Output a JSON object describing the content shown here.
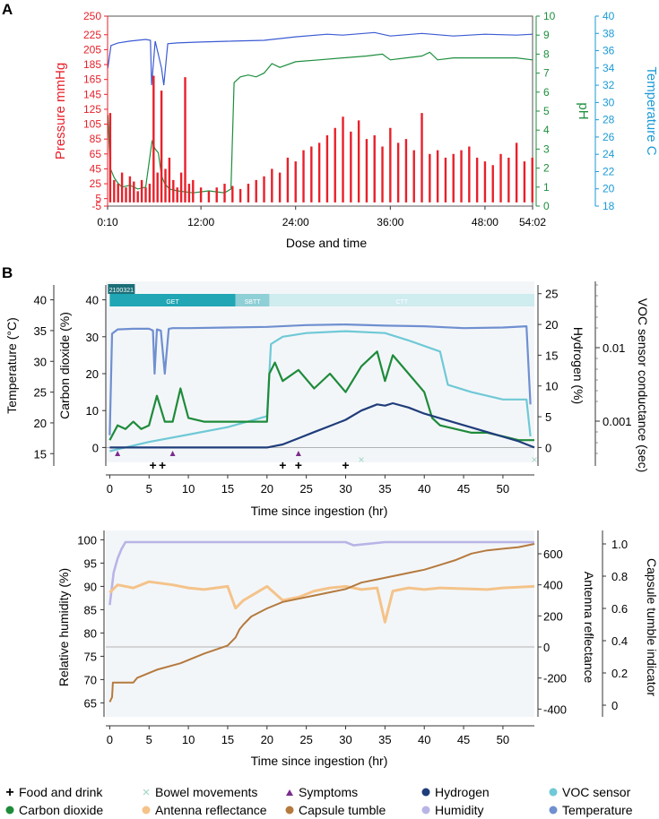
{
  "panel_labels": {
    "a": "A",
    "b": "B"
  },
  "colors": {
    "pressure": "#e8202a",
    "ph": "#1e8e3e",
    "temperature_a": "#3b5bd3",
    "temperature_axis": "#1a9ad6",
    "co2": "#1e8b3a",
    "hydrogen": "#1f3d7a",
    "voc": "#6fc9d6",
    "temperature_b": "#6f8fd0",
    "humidity": "#b9b4e6",
    "antenna": "#f4c38a",
    "tumble": "#b57a3e",
    "symptom": "#7b2c8c",
    "bowel": "#9fd4c4",
    "food": "#000000",
    "seg_get": "#20a6b4",
    "seg_sbtt": "#8fcfd6",
    "seg_ct": "#cfecef"
  },
  "chart_data": [
    {
      "id": "A",
      "type": "line",
      "xlabel": "Dose and time",
      "xticks": [
        "0:10",
        "12:00",
        "24:00",
        "36:00",
        "48:00",
        "54:02"
      ],
      "xtick_hours": [
        0.17,
        12,
        24,
        36,
        48,
        54.03
      ],
      "xlim": [
        0.17,
        54.03
      ],
      "axes": {
        "pressure": {
          "label": "Pressure mmHg",
          "range": [
            -5,
            250
          ],
          "ticks": [
            -5,
            5,
            25,
            45,
            65,
            85,
            105,
            125,
            145,
            165,
            185,
            205,
            225,
            250
          ]
        },
        "ph": {
          "label": "pH",
          "range": [
            0,
            10
          ],
          "ticks": [
            0,
            1,
            2,
            3,
            4,
            5,
            6,
            7,
            8,
            9,
            10
          ]
        },
        "temperature": {
          "label": "Temperature C",
          "range": [
            18,
            40
          ],
          "ticks": [
            18,
            20,
            22,
            24,
            26,
            28,
            30,
            32,
            34,
            36,
            38,
            40
          ]
        }
      },
      "series": [
        {
          "name": "Temperature",
          "axis": "temperature",
          "hours": [
            0.2,
            0.6,
            1.5,
            3,
            5,
            5.6,
            5.75,
            6.2,
            7,
            7.3,
            7.8,
            9,
            12,
            16,
            20,
            24,
            28,
            30,
            34,
            36,
            40,
            44,
            48,
            52,
            54
          ],
          "values": [
            34,
            36.6,
            36.9,
            37.1,
            37.3,
            37.2,
            32,
            37.1,
            34,
            32,
            36.8,
            36.9,
            37.0,
            37.1,
            37.2,
            37.6,
            37.9,
            37.8,
            38.1,
            37.7,
            38.0,
            37.7,
            37.9,
            37.8,
            37.9
          ]
        },
        {
          "name": "pH",
          "axis": "ph",
          "hours": [
            0.2,
            0.5,
            1,
            1.5,
            2,
            3,
            4,
            5,
            5.8,
            6.2,
            6.6,
            7,
            7.4,
            8,
            9,
            11,
            13,
            15,
            15.8,
            16.2,
            17,
            18,
            19,
            20,
            21,
            22,
            24,
            27,
            30,
            33,
            35,
            36,
            38,
            40,
            41,
            42,
            44,
            48,
            52,
            54
          ],
          "values": [
            4.8,
            2,
            1.5,
            1.2,
            1.0,
            1.1,
            0.9,
            1.0,
            3.4,
            3.0,
            2.8,
            1.6,
            1.2,
            0.9,
            0.8,
            0.7,
            0.8,
            0.7,
            0.9,
            6.5,
            6.8,
            6.9,
            6.8,
            7.0,
            7.5,
            7.3,
            7.6,
            7.7,
            7.8,
            7.9,
            8.0,
            7.7,
            7.8,
            7.9,
            8.1,
            7.7,
            7.8,
            7.8,
            7.8,
            7.7
          ]
        },
        {
          "name": "Pressure",
          "axis": "pressure",
          "type": "spikes",
          "hours": [
            0.5,
            1,
            1.5,
            2,
            2.5,
            3,
            3.5,
            4,
            4.5,
            5,
            5.5,
            6,
            6.5,
            7,
            7.5,
            8,
            8.5,
            9,
            9.5,
            10,
            10.5,
            11,
            12,
            13,
            14,
            15,
            16,
            17,
            18,
            19,
            20,
            21,
            22,
            23,
            24,
            25,
            26,
            27,
            28,
            29,
            30,
            31,
            32,
            33,
            34,
            35,
            36,
            37,
            38,
            39,
            40,
            41,
            42,
            43,
            44,
            45,
            46,
            47,
            48,
            49,
            50,
            51,
            52,
            53,
            54
          ],
          "values": [
            120,
            30,
            25,
            40,
            20,
            35,
            28,
            15,
            30,
            20,
            25,
            170,
            40,
            150,
            45,
            60,
            30,
            20,
            40,
            168,
            25,
            30,
            20,
            15,
            20,
            25,
            22,
            18,
            25,
            30,
            35,
            45,
            40,
            60,
            55,
            70,
            75,
            80,
            90,
            100,
            115,
            95,
            110,
            85,
            90,
            75,
            100,
            80,
            85,
            70,
            120,
            65,
            70,
            60,
            65,
            70,
            75,
            60,
            55,
            50,
            65,
            60,
            80,
            55,
            60
          ]
        }
      ]
    },
    {
      "id": "B-top",
      "type": "line",
      "xlabel": "Time since ingestion (hr)",
      "xticks": [
        0,
        5,
        10,
        15,
        20,
        25,
        30,
        35,
        40,
        45,
        50
      ],
      "xlim": [
        -0.5,
        54
      ],
      "segments": [
        {
          "label": "GET",
          "start": 0,
          "end": 16
        },
        {
          "label": "SBTT",
          "start": 16,
          "end": 20.3
        },
        {
          "label": "CTT",
          "start": 20.3,
          "end": 54
        }
      ],
      "segment_tag": "2100321",
      "axes": {
        "temperature": {
          "label": "Temperature (°C)",
          "range": [
            13,
            43
          ],
          "ticks": [
            15,
            20,
            25,
            30,
            35,
            40
          ]
        },
        "co2": {
          "label": "Carbon dioxide (%)",
          "range": [
            -5,
            45
          ],
          "ticks": [
            0,
            10,
            20,
            30,
            40
          ]
        },
        "hydrogen": {
          "label": "Hydrogen (%)",
          "range": [
            -3,
            27
          ],
          "ticks": [
            0,
            5,
            10,
            15,
            20,
            25
          ]
        },
        "voc": {
          "label": "VOC sensor conductance (sec)",
          "scale": "log",
          "ticks": [
            "0.01",
            "0.001"
          ]
        }
      },
      "series": [
        {
          "name": "Temperature",
          "axis": "temperature",
          "hours": [
            0,
            0.3,
            1,
            3,
            5,
            5.5,
            5.7,
            6,
            6.5,
            7,
            7.5,
            8,
            10,
            15,
            20,
            25,
            30,
            35,
            40,
            45,
            50,
            53,
            53.5
          ],
          "values": [
            18,
            34.5,
            35.2,
            35.3,
            35.3,
            35.0,
            28,
            35.2,
            35.0,
            28,
            35.3,
            35.4,
            35.4,
            35.5,
            35.6,
            35.9,
            36.0,
            35.8,
            35.7,
            35.4,
            35.5,
            35.7,
            23
          ]
        },
        {
          "name": "VOC sensor",
          "axis": "co2",
          "hours": [
            0,
            5,
            10,
            15,
            20,
            20.5,
            22,
            25,
            30,
            35,
            38,
            42,
            43,
            46,
            50,
            53,
            53.5
          ],
          "values": [
            -1,
            1.5,
            3.5,
            5.5,
            8.5,
            28,
            30,
            31,
            31.5,
            31,
            29,
            26,
            17,
            15,
            13,
            13,
            3
          ]
        },
        {
          "name": "Carbon dioxide",
          "axis": "co2",
          "hours": [
            0,
            1,
            2,
            3,
            4,
            5,
            6,
            7,
            8,
            9,
            10,
            12,
            14,
            16,
            18,
            20,
            20.3,
            21,
            22,
            24,
            26,
            28,
            30,
            32,
            34,
            35,
            36,
            38,
            40,
            41,
            42,
            44,
            46,
            48,
            50,
            52,
            54
          ],
          "values": [
            2,
            6,
            5,
            7,
            5,
            6,
            14,
            7,
            7,
            16,
            8,
            7,
            7,
            7,
            7,
            7,
            20,
            23,
            18,
            21,
            16,
            20,
            15,
            22,
            26,
            18,
            25,
            20,
            15,
            8,
            6,
            5,
            4,
            4,
            3,
            2,
            2
          ]
        },
        {
          "name": "Hydrogen",
          "axis": "hydrogen",
          "hours": [
            0,
            5,
            10,
            15,
            20,
            22,
            24,
            26,
            28,
            30,
            32,
            34,
            35,
            36,
            38,
            40,
            44,
            48,
            52,
            54
          ],
          "values": [
            0,
            0,
            0,
            0,
            0,
            0.5,
            1.5,
            2.5,
            3.5,
            4.5,
            6,
            7,
            6.8,
            7.2,
            6.5,
            5.5,
            4,
            2.5,
            1,
            0
          ]
        }
      ],
      "events": {
        "food_and_drink": [
          5.5,
          6.7,
          22,
          24,
          30
        ],
        "symptoms": [
          1,
          8,
          24
        ],
        "bowel_movements": [
          32,
          54
        ]
      }
    },
    {
      "id": "B-bottom",
      "type": "scatter",
      "xlabel": "Time since ingestion (hr)",
      "xticks": [
        0,
        5,
        10,
        15,
        20,
        25,
        30,
        35,
        40,
        45,
        50
      ],
      "xlim": [
        -0.5,
        54
      ],
      "axes": {
        "humidity": {
          "label": "Relative humidity (%)",
          "range": [
            62,
            102
          ],
          "ticks": [
            65,
            70,
            75,
            80,
            85,
            90,
            95,
            100
          ]
        },
        "antenna": {
          "label": "Antenna reflectance",
          "range": [
            -450,
            750
          ],
          "ticks": [
            -400,
            -200,
            0,
            200,
            400,
            600
          ]
        },
        "tumble": {
          "label": "Capsule tumble indicator",
          "range": [
            -0.05,
            1.05
          ],
          "ticks": [
            0,
            0.2,
            0.4,
            0.6,
            0.8,
            1.0
          ]
        }
      },
      "series": [
        {
          "name": "Humidity",
          "axis": "humidity",
          "hours": [
            0,
            0.5,
            1,
            1.5,
            2,
            5,
            10,
            20,
            30,
            31,
            35,
            40,
            54
          ],
          "values": [
            86,
            93,
            96,
            98,
            99.5,
            99.5,
            99.5,
            99.5,
            99.5,
            98.8,
            99.5,
            99.5,
            99.5
          ]
        },
        {
          "name": "Antenna reflectance",
          "axis": "antenna",
          "hours": [
            0,
            1,
            3,
            5,
            8,
            10,
            12,
            15,
            16,
            17,
            18,
            20,
            22,
            24,
            26,
            28,
            30,
            32,
            34,
            35,
            36,
            38,
            40,
            42,
            45,
            48,
            50,
            54
          ],
          "values": [
            350,
            400,
            380,
            420,
            400,
            380,
            370,
            390,
            250,
            300,
            330,
            390,
            300,
            320,
            360,
            380,
            390,
            370,
            380,
            160,
            360,
            380,
            370,
            380,
            375,
            370,
            380,
            390
          ]
        },
        {
          "name": "Capsule tumble",
          "axis": "tumble",
          "hours": [
            0,
            0.3,
            0.4,
            3,
            3.5,
            6,
            9,
            12,
            15,
            16,
            16.5,
            17,
            18,
            20,
            22,
            24,
            26,
            28,
            30,
            32,
            34,
            36,
            38,
            40,
            42,
            44,
            46,
            48,
            50,
            52,
            54
          ],
          "values": [
            0.02,
            0.05,
            0.14,
            0.14,
            0.17,
            0.22,
            0.26,
            0.32,
            0.37,
            0.42,
            0.47,
            0.5,
            0.55,
            0.6,
            0.64,
            0.66,
            0.68,
            0.7,
            0.72,
            0.76,
            0.78,
            0.8,
            0.82,
            0.84,
            0.87,
            0.9,
            0.94,
            0.96,
            0.97,
            0.98,
            1.0
          ]
        }
      ]
    }
  ],
  "legend": [
    {
      "symbol": "plus",
      "label": "Food and drink",
      "color": "#000000"
    },
    {
      "symbol": "cross",
      "label": "Bowel movements",
      "color": "#9fd4c4"
    },
    {
      "symbol": "triangle",
      "label": "Symptoms",
      "color": "#7b2c8c"
    },
    {
      "symbol": "dot",
      "label": "Hydrogen",
      "color": "#1f3d7a"
    },
    {
      "symbol": "dot",
      "label": "VOC sensor",
      "color": "#6fc9d6"
    },
    {
      "symbol": "dot",
      "label": "Carbon dioxide",
      "color": "#1e8b3a"
    },
    {
      "symbol": "dot",
      "label": "Antenna reflectance",
      "color": "#f4c38a"
    },
    {
      "symbol": "dot",
      "label": "Capsule tumble",
      "color": "#b57a3e"
    },
    {
      "symbol": "dot",
      "label": "Humidity",
      "color": "#b9b4e6"
    },
    {
      "symbol": "dot",
      "label": "Temperature",
      "color": "#6f8fd0"
    }
  ]
}
